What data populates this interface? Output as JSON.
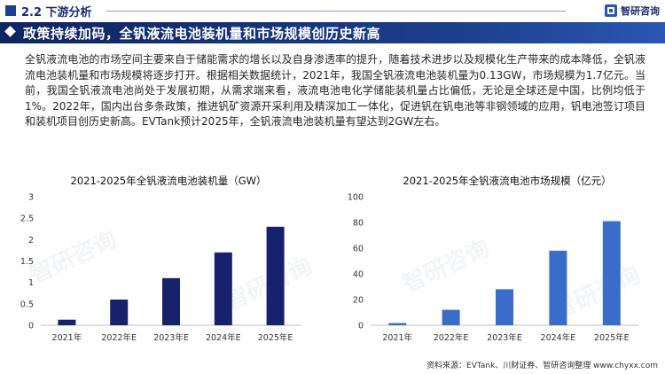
{
  "header": {
    "section": "2.2 下游分析",
    "brand": "智研咨询"
  },
  "banner": {
    "title": "政策持续加码，全钒液流电池装机量和市场规模创历史新高"
  },
  "paragraph": "全钒液流电池的市场空间主要来自于储能需求的增长以及自身渗透率的提升，随着技术进步以及规模化生产带来的成本降低，全钒液流电池装机量和市场规模将逐步打开。根据相关数据统计，2021年，我国全钒液流电池装机量为0.13GW，市场规模为1.7亿元。当前，我国全钒液流电池尚处于发展初期，从需求端来看，液流电池电化学储能装机量占比偏低，无论是全球还是中国，比例均低于1%。2022年，国内出台多条政策，推进钒矿资源开采利用及精深加工一体化，促进钒在钒电池等非钢领域的应用，钒电池签订项目和装机项目创历史新高。EVTank预计2025年，全钒液流电池装机量有望达到2GW左右。",
  "footer": "资料来源：EVTank、川财证券、智研咨询整理    www.chyxx.com",
  "watermark": "智研咨询",
  "colors": {
    "bar_left": "#16226b",
    "bar_right": "#3a6cc9",
    "banner": "#1d3f8f"
  },
  "chart_data": [
    {
      "type": "bar",
      "title": "2021-2025年全钒液流电池装机量（GW）",
      "categories": [
        "2021年",
        "2022年E",
        "2023年E",
        "2024年E",
        "2025年E"
      ],
      "values": [
        0.13,
        0.6,
        1.1,
        1.7,
        2.3
      ],
      "ylim": [
        0,
        3
      ],
      "yticks": [
        0,
        0.5,
        1,
        1.5,
        2,
        2.5,
        3
      ],
      "ytick_labels": [
        "0",
        "0.5",
        "1",
        "1.5",
        "2",
        "2.5",
        "3"
      ],
      "grid": false,
      "legend": "none"
    },
    {
      "type": "bar",
      "title": "2021-2025年全钒液流电池市场规模（亿元）",
      "categories": [
        "2021年",
        "2022年E",
        "2023年E",
        "2024年E",
        "2025年E"
      ],
      "values": [
        1.7,
        12,
        28,
        58,
        81
      ],
      "ylim": [
        0,
        100
      ],
      "yticks": [
        0,
        20,
        40,
        60,
        80,
        100
      ],
      "ytick_labels": [
        "0",
        "20",
        "40",
        "60",
        "80",
        "100"
      ],
      "grid": false,
      "legend": "none"
    }
  ]
}
